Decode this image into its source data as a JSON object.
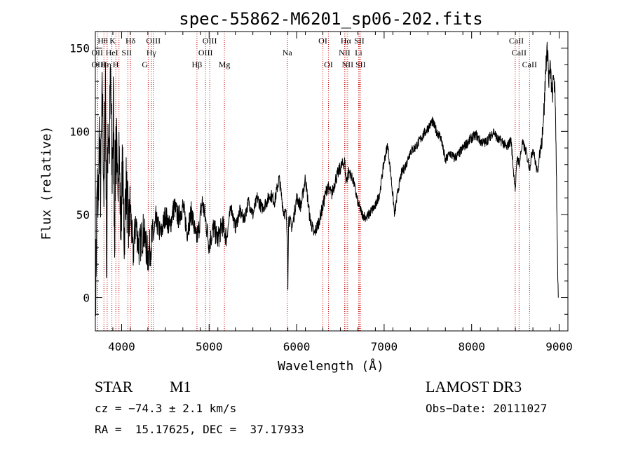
{
  "chart_data": {
    "type": "line",
    "title": "spec-55862-M6201_sp06-202.fits",
    "xlabel": "Wavelength (Å)",
    "ylabel": "Flux (relative)",
    "xlim": [
      3700,
      9100
    ],
    "ylim": [
      -20,
      160
    ],
    "xticks": [
      4000,
      5000,
      6000,
      7000,
      8000,
      9000
    ],
    "yticks": [
      0,
      50,
      100,
      150
    ],
    "line_color": "#000000",
    "marker_color": "#cc0000",
    "anchors": [
      [
        3700,
        0
      ],
      [
        3710,
        22
      ],
      [
        3720,
        75
      ],
      [
        3730,
        40
      ],
      [
        3745,
        100
      ],
      [
        3760,
        65
      ],
      [
        3780,
        125
      ],
      [
        3800,
        55
      ],
      [
        3815,
        135
      ],
      [
        3830,
        20
      ],
      [
        3845,
        110
      ],
      [
        3860,
        90
      ],
      [
        3875,
        130
      ],
      [
        3890,
        70
      ],
      [
        3905,
        115
      ],
      [
        3920,
        45
      ],
      [
        3935,
        105
      ],
      [
        3950,
        60
      ],
      [
        3970,
        95
      ],
      [
        3990,
        40
      ],
      [
        4010,
        80
      ],
      [
        4030,
        35
      ],
      [
        4050,
        70
      ],
      [
        4080,
        40
      ],
      [
        4100,
        55
      ],
      [
        4130,
        25
      ],
      [
        4160,
        45
      ],
      [
        4200,
        30
      ],
      [
        4250,
        40
      ],
      [
        4300,
        25
      ],
      [
        4350,
        35
      ],
      [
        4400,
        45
      ],
      [
        4450,
        38
      ],
      [
        4500,
        50
      ],
      [
        4550,
        42
      ],
      [
        4600,
        55
      ],
      [
        4650,
        48
      ],
      [
        4700,
        55
      ],
      [
        4750,
        40
      ],
      [
        4800,
        52
      ],
      [
        4850,
        35
      ],
      [
        4880,
        40
      ],
      [
        4920,
        58
      ],
      [
        4950,
        50
      ],
      [
        5000,
        32
      ],
      [
        5050,
        42
      ],
      [
        5100,
        35
      ],
      [
        5150,
        44
      ],
      [
        5200,
        36
      ],
      [
        5250,
        55
      ],
      [
        5300,
        42
      ],
      [
        5350,
        52
      ],
      [
        5400,
        47
      ],
      [
        5450,
        58
      ],
      [
        5500,
        50
      ],
      [
        5550,
        60
      ],
      [
        5600,
        54
      ],
      [
        5650,
        57
      ],
      [
        5700,
        62
      ],
      [
        5750,
        58
      ],
      [
        5800,
        72
      ],
      [
        5850,
        52
      ],
      [
        5880,
        50
      ],
      [
        5895,
        35
      ],
      [
        5900,
        5
      ],
      [
        5908,
        48
      ],
      [
        5950,
        42
      ],
      [
        6000,
        60
      ],
      [
        6050,
        55
      ],
      [
        6100,
        72
      ],
      [
        6150,
        48
      ],
      [
        6200,
        38
      ],
      [
        6250,
        45
      ],
      [
        6300,
        55
      ],
      [
        6350,
        67
      ],
      [
        6400,
        62
      ],
      [
        6450,
        72
      ],
      [
        6500,
        78
      ],
      [
        6550,
        82
      ],
      [
        6563,
        70
      ],
      [
        6600,
        76
      ],
      [
        6650,
        70
      ],
      [
        6700,
        57
      ],
      [
        6750,
        50
      ],
      [
        6800,
        48
      ],
      [
        6850,
        52
      ],
      [
        6900,
        55
      ],
      [
        6950,
        63
      ],
      [
        7000,
        82
      ],
      [
        7040,
        92
      ],
      [
        7080,
        72
      ],
      [
        7120,
        50
      ],
      [
        7160,
        65
      ],
      [
        7200,
        75
      ],
      [
        7250,
        80
      ],
      [
        7300,
        88
      ],
      [
        7350,
        90
      ],
      [
        7400,
        94
      ],
      [
        7450,
        98
      ],
      [
        7500,
        102
      ],
      [
        7550,
        106
      ],
      [
        7600,
        100
      ],
      [
        7650,
        96
      ],
      [
        7700,
        82
      ],
      [
        7750,
        87
      ],
      [
        7800,
        84
      ],
      [
        7850,
        86
      ],
      [
        7900,
        90
      ],
      [
        7950,
        93
      ],
      [
        8000,
        96
      ],
      [
        8050,
        98
      ],
      [
        8100,
        94
      ],
      [
        8150,
        93
      ],
      [
        8200,
        96
      ],
      [
        8250,
        100
      ],
      [
        8300,
        95
      ],
      [
        8350,
        94
      ],
      [
        8400,
        90
      ],
      [
        8450,
        95
      ],
      [
        8480,
        75
      ],
      [
        8500,
        65
      ],
      [
        8520,
        85
      ],
      [
        8542,
        80
      ],
      [
        8580,
        93
      ],
      [
        8620,
        88
      ],
      [
        8662,
        78
      ],
      [
        8700,
        90
      ],
      [
        8750,
        75
      ],
      [
        8800,
        95
      ],
      [
        8830,
        115
      ],
      [
        8850,
        142
      ],
      [
        8870,
        150
      ],
      [
        8880,
        130
      ],
      [
        8900,
        138
      ],
      [
        8920,
        120
      ],
      [
        8940,
        135
      ],
      [
        8960,
        110
      ],
      [
        8980,
        30
      ],
      [
        8990,
        0
      ]
    ],
    "noise_bands": [
      [
        3700,
        3800,
        22
      ],
      [
        3800,
        3950,
        30
      ],
      [
        3950,
        4100,
        20
      ],
      [
        4100,
        4400,
        12
      ],
      [
        4400,
        5200,
        7
      ],
      [
        5200,
        6600,
        4
      ],
      [
        6600,
        8800,
        3
      ],
      [
        8800,
        9000,
        7
      ]
    ],
    "lines": [
      {
        "label": "Hθ",
        "wave": 3798,
        "row": 1,
        "align": "left"
      },
      {
        "label": "OII",
        "wave": 3727,
        "row": 2,
        "align": "left"
      },
      {
        "label": "OIII",
        "wave": 3727,
        "row": 3,
        "align": "left"
      },
      {
        "label": "K",
        "wave": 3934,
        "row": 1,
        "align": "left"
      },
      {
        "label": "HeI",
        "wave": 3889,
        "row": 2,
        "align": "center"
      },
      {
        "label": "Hη",
        "wave": 3835,
        "row": 3,
        "align": "left"
      },
      {
        "label": "SII",
        "wave": 4072,
        "row": 2,
        "align": "left"
      },
      {
        "label": "Hδ",
        "wave": 4102,
        "row": 1,
        "align": "center"
      },
      {
        "label": "H",
        "wave": 3970,
        "row": 3,
        "align": "left"
      },
      {
        "label": "OIII",
        "wave": 4363,
        "row": 1,
        "align": "center"
      },
      {
        "label": "Hγ",
        "wave": 4340,
        "row": 2,
        "align": "center"
      },
      {
        "label": "G",
        "wave": 4304,
        "row": 3,
        "align": "left"
      },
      {
        "label": "Hβ",
        "wave": 4861,
        "row": 3,
        "align": "center"
      },
      {
        "label": "OIII",
        "wave": 5007,
        "row": 1,
        "align": "center"
      },
      {
        "label": "OIII",
        "wave": 4959,
        "row": 2,
        "align": "center"
      },
      {
        "label": "Mg",
        "wave": 5175,
        "row": 3,
        "align": "center"
      },
      {
        "label": "Na",
        "wave": 5893,
        "row": 2,
        "align": "center"
      },
      {
        "label": "OI",
        "wave": 6300,
        "row": 1,
        "align": "center"
      },
      {
        "label": "OI",
        "wave": 6364,
        "row": 3,
        "align": "center"
      },
      {
        "label": "Hα",
        "wave": 6563,
        "row": 1,
        "align": "center"
      },
      {
        "label": "SII",
        "wave": 6716,
        "row": 1,
        "align": "center"
      },
      {
        "label": "NII",
        "wave": 6548,
        "row": 2,
        "align": "center"
      },
      {
        "label": "Li",
        "wave": 6708,
        "row": 2,
        "align": "center"
      },
      {
        "label": "NII",
        "wave": 6583,
        "row": 3,
        "align": "center"
      },
      {
        "label": "SII",
        "wave": 6731,
        "row": 3,
        "align": "center"
      },
      {
        "label": "CaII",
        "wave": 8498,
        "row": 1,
        "align": "left"
      },
      {
        "label": "CaII",
        "wave": 8542,
        "row": 2,
        "align": "center"
      },
      {
        "label": "CaII",
        "wave": 8662,
        "row": 3,
        "align": "center"
      }
    ]
  },
  "info": {
    "object_class": "STAR",
    "subclass": "M1",
    "survey": "LAMOST DR3",
    "cz": "cz = −74.3 ± 2.1 km/s",
    "obs_date": "Obs−Date: 20111027",
    "coords": "RA =  15.17625, DEC =  37.17933"
  }
}
